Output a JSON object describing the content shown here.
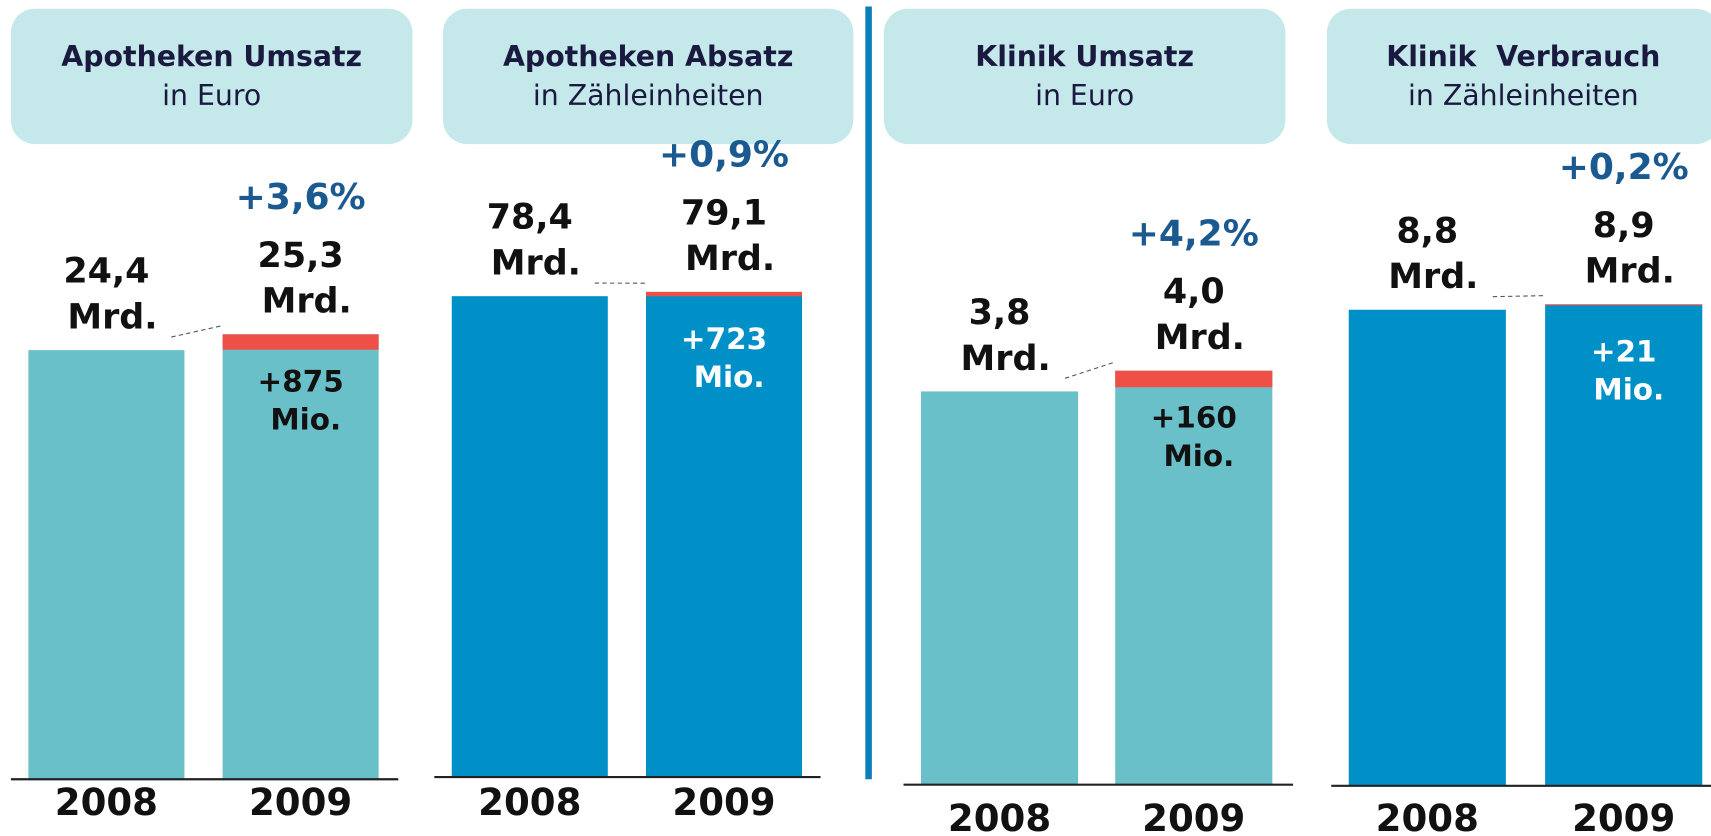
{
  "chart_data": [
    {
      "type": "bar",
      "title": "Apotheken Umsatz",
      "subtitle": "in Euro",
      "categories": [
        "2008",
        "2009"
      ],
      "values": [
        24.4,
        25.3
      ],
      "value_labels": [
        "24,4 Mrd.",
        "25,3 Mrd."
      ],
      "color": "#6ac0c8",
      "increase": 0.875,
      "increase_label": "+875 Mio.",
      "increase_color": "#ee5048",
      "increase_label_color": "#111111",
      "change": 3.6,
      "change_label": "+3,6%",
      "ylim": [
        0,
        35
      ]
    },
    {
      "type": "bar",
      "title": "Apotheken Absatz",
      "subtitle": "in Zähleinheiten",
      "categories": [
        "2008",
        "2009"
      ],
      "values": [
        78.4,
        79.1
      ],
      "value_labels": [
        "78,4 Mrd.",
        "79,1 Mrd."
      ],
      "color": "#0090c8",
      "increase": 0.723,
      "increase_label": "+723 Mio.",
      "increase_color": "#ee5048",
      "increase_label_color": "#ffffff",
      "change": 0.9,
      "change_label": "+0,9%",
      "ylim": [
        0,
        100
      ]
    },
    {
      "type": "bar",
      "title": "Klinik Umsatz",
      "subtitle": "in Euro",
      "categories": [
        "2008",
        "2009"
      ],
      "values": [
        3.8,
        4.0
      ],
      "value_labels": [
        "3,8 Mrd.",
        "4,0 Mrd."
      ],
      "color": "#6ac0c8",
      "increase": 0.16,
      "increase_label": "+160 Mio.",
      "increase_color": "#ee5048",
      "increase_label_color": "#111111",
      "change": 4.2,
      "change_label": "+4,2%",
      "ylim": [
        0,
        6
      ]
    },
    {
      "type": "bar",
      "title": "Klinik  Verbrauch",
      "subtitle": "in Zähleinheiten",
      "categories": [
        "2008",
        "2009"
      ],
      "values": [
        8.8,
        8.9
      ],
      "value_labels": [
        "8,8 Mrd.",
        "8,9 Mrd."
      ],
      "color": "#0090c8",
      "increase": 0.021,
      "increase_label": "+21 Mio.",
      "increase_color": "#ee5048",
      "increase_label_color": "#ffffff",
      "change": 0.2,
      "change_label": "+0,2%",
      "ylim": [
        0,
        11.5
      ]
    }
  ]
}
